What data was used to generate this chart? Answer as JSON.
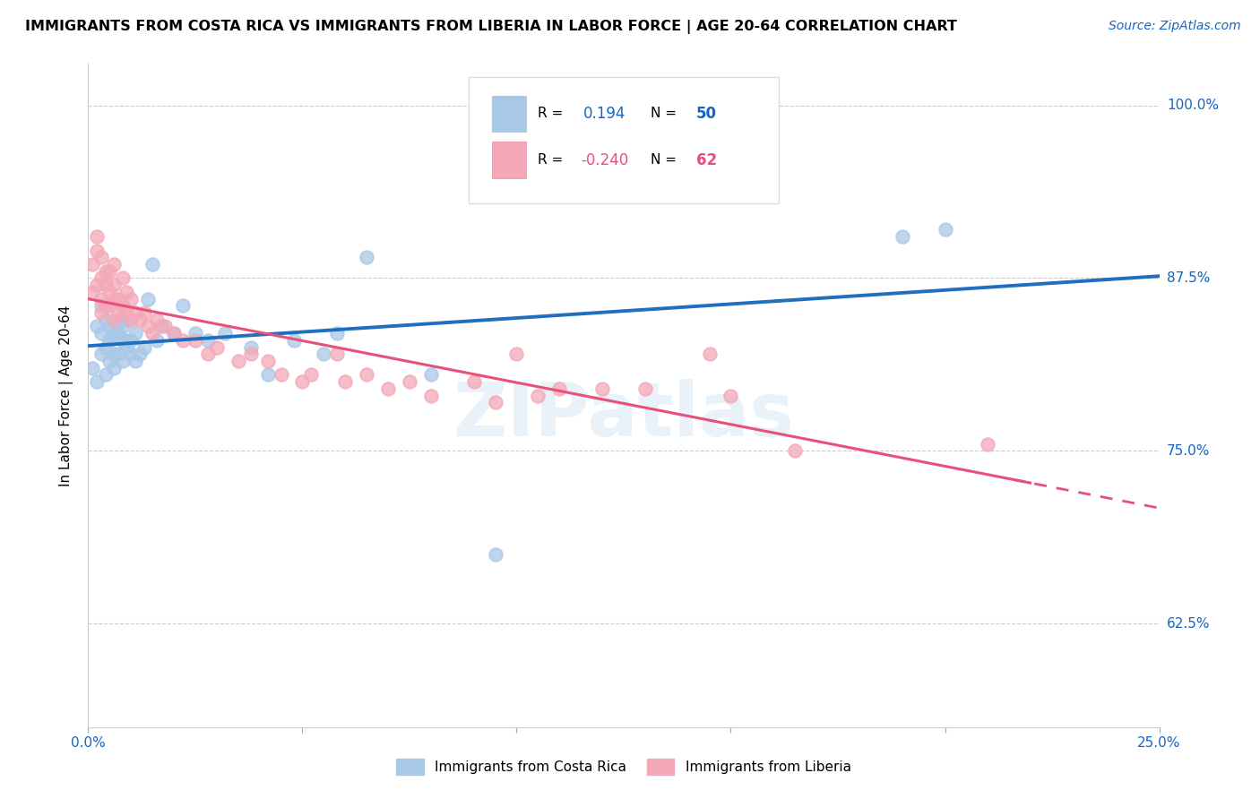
{
  "title": "IMMIGRANTS FROM COSTA RICA VS IMMIGRANTS FROM LIBERIA IN LABOR FORCE | AGE 20-64 CORRELATION CHART",
  "source": "Source: ZipAtlas.com",
  "ylabel": "In Labor Force | Age 20-64",
  "xlim": [
    0.0,
    0.25
  ],
  "ylim": [
    55.0,
    103.0
  ],
  "blue_color": "#A8C8E8",
  "pink_color": "#F4A8B8",
  "blue_line_color": "#1E6FBF",
  "pink_line_color": "#E8507A",
  "watermark": "ZIPatlas",
  "costa_rica_x": [
    0.001,
    0.002,
    0.002,
    0.003,
    0.003,
    0.003,
    0.004,
    0.004,
    0.004,
    0.005,
    0.005,
    0.005,
    0.005,
    0.006,
    0.006,
    0.006,
    0.007,
    0.007,
    0.007,
    0.008,
    0.008,
    0.008,
    0.009,
    0.009,
    0.009,
    0.01,
    0.01,
    0.011,
    0.011,
    0.012,
    0.013,
    0.014,
    0.015,
    0.016,
    0.017,
    0.02,
    0.022,
    0.025,
    0.028,
    0.032,
    0.038,
    0.042,
    0.048,
    0.055,
    0.058,
    0.065,
    0.08,
    0.095,
    0.19,
    0.2
  ],
  "costa_rica_y": [
    81.0,
    84.0,
    80.0,
    83.5,
    85.5,
    82.0,
    80.5,
    82.5,
    84.5,
    83.0,
    81.5,
    84.0,
    83.0,
    81.0,
    83.5,
    82.0,
    82.0,
    84.5,
    83.5,
    83.0,
    81.5,
    84.0,
    82.5,
    83.0,
    84.5,
    82.0,
    83.0,
    81.5,
    83.5,
    82.0,
    82.5,
    86.0,
    88.5,
    83.0,
    84.0,
    83.5,
    85.5,
    83.5,
    83.0,
    83.5,
    82.5,
    80.5,
    83.0,
    82.0,
    83.5,
    89.0,
    80.5,
    67.5,
    90.5,
    91.0
  ],
  "liberia_x": [
    0.001,
    0.001,
    0.002,
    0.002,
    0.002,
    0.003,
    0.003,
    0.003,
    0.003,
    0.004,
    0.004,
    0.004,
    0.005,
    0.005,
    0.005,
    0.006,
    0.006,
    0.006,
    0.006,
    0.007,
    0.007,
    0.008,
    0.008,
    0.009,
    0.009,
    0.01,
    0.01,
    0.011,
    0.012,
    0.013,
    0.014,
    0.015,
    0.016,
    0.018,
    0.02,
    0.022,
    0.025,
    0.028,
    0.03,
    0.035,
    0.038,
    0.042,
    0.045,
    0.05,
    0.052,
    0.058,
    0.06,
    0.065,
    0.07,
    0.075,
    0.08,
    0.09,
    0.095,
    0.1,
    0.105,
    0.11,
    0.12,
    0.13,
    0.145,
    0.15,
    0.165,
    0.21
  ],
  "liberia_y": [
    86.5,
    88.5,
    87.0,
    89.5,
    90.5,
    85.0,
    87.5,
    86.0,
    89.0,
    85.5,
    87.0,
    88.0,
    86.5,
    88.0,
    85.5,
    84.5,
    86.0,
    87.0,
    88.5,
    85.0,
    86.0,
    85.5,
    87.5,
    85.0,
    86.5,
    84.5,
    86.0,
    85.0,
    84.5,
    85.0,
    84.0,
    83.5,
    84.5,
    84.0,
    83.5,
    83.0,
    83.0,
    82.0,
    82.5,
    81.5,
    82.0,
    81.5,
    80.5,
    80.0,
    80.5,
    82.0,
    80.0,
    80.5,
    79.5,
    80.0,
    79.0,
    80.0,
    78.5,
    82.0,
    79.0,
    79.5,
    79.5,
    79.5,
    82.0,
    79.0,
    75.0,
    75.5
  ],
  "legend_R_blue": "0.194",
  "legend_N_blue": "50",
  "legend_R_pink": "-0.240",
  "legend_N_pink": "62"
}
